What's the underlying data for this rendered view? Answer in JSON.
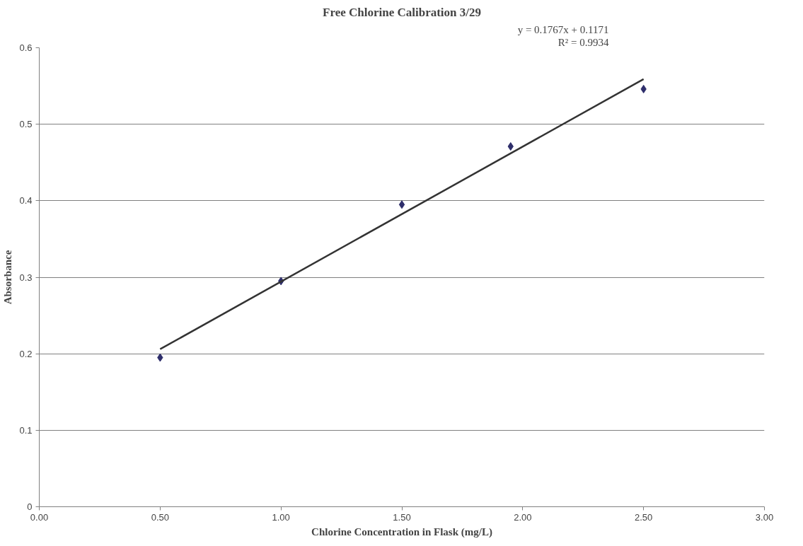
{
  "chart_data": {
    "type": "scatter",
    "title": "Free Chlorine Calibration 3/29",
    "xlabel": "Chlorine Concentration in Flask (mg/L)",
    "ylabel": "Absorbance",
    "annotations": [
      "y = 0.1767x + 0.1171",
      "R² = 0.9934"
    ],
    "series": [
      {
        "color": "#2e2e6b",
        "marker": "diamond",
        "x": [
          0.5,
          1.0,
          1.5,
          1.95,
          2.5
        ],
        "values": [
          0.195,
          0.295,
          0.395,
          0.471,
          0.546
        ]
      },
      {
        "type": "line",
        "color": "#333333",
        "line_style": "solid",
        "x": [
          0.5,
          2.5
        ],
        "values": [
          0.206,
          0.559
        ]
      }
    ],
    "xlim": [
      0,
      3
    ],
    "xticks": [
      {
        "value": 0,
        "label": "0.00"
      },
      {
        "value": 0.5,
        "label": "0.50"
      },
      {
        "value": 1,
        "label": "1.00"
      },
      {
        "value": 1.5,
        "label": "1.50"
      },
      {
        "value": 2,
        "label": "2.00"
      },
      {
        "value": 2.5,
        "label": "2.50"
      },
      {
        "value": 3,
        "label": "3.00"
      }
    ],
    "ylim": [
      0,
      0.6
    ],
    "yticks": [
      0,
      0.1,
      0.2,
      0.3,
      0.4,
      0.5,
      0.6
    ],
    "grid": "y"
  }
}
